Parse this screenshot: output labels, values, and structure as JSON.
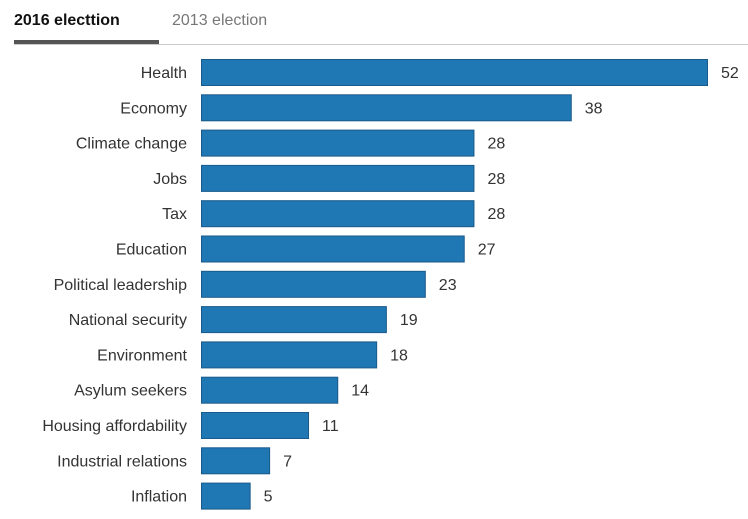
{
  "tabs": [
    {
      "label": "2016 electtion",
      "active": true
    },
    {
      "label": "2013 election",
      "active": false
    }
  ],
  "colors": {
    "bar_fill": "#1f77b4",
    "bar_stroke": "#1a5a8a",
    "text": "#333333"
  },
  "chart_data": {
    "type": "bar",
    "orientation": "horizontal",
    "title": "",
    "xlabel": "",
    "ylabel": "",
    "categories": [
      "Health",
      "Economy",
      "Climate change",
      "Jobs",
      "Tax",
      "Education",
      "Political leadership",
      "National security",
      "Environment",
      "Asylum seekers",
      "Housing affordability",
      "Industrial relations",
      "Inflation"
    ],
    "values": [
      52,
      38,
      28,
      28,
      28,
      27,
      23,
      19,
      18,
      14,
      11,
      7,
      5
    ],
    "xlim": [
      0,
      52
    ],
    "grid": false,
    "data_labels": true
  }
}
